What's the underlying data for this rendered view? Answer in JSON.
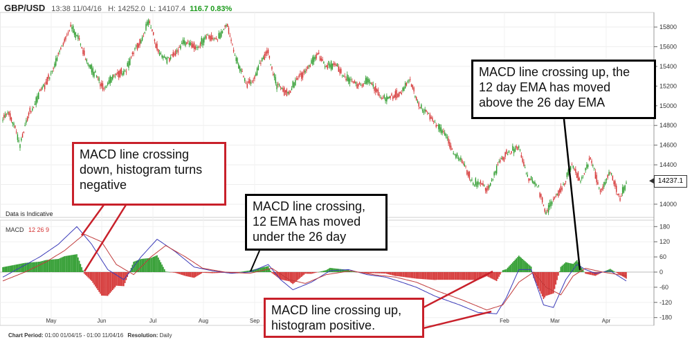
{
  "header": {
    "symbol": "GBP/USD",
    "time": "13:38 11/04/16",
    "high": "H: 14252.0",
    "low": "L: 14107.4",
    "change": "116.7 0.83%"
  },
  "note": "Data is Indicative",
  "indicator": {
    "name": "MACD",
    "params": "12 26 9"
  },
  "footer": {
    "period_label": "Chart Period:",
    "period_value": "01:00 01/04/15 - 01:00 11/04/16",
    "resolution_label": "Resolution:",
    "resolution_value": "Daily"
  },
  "last_price": "14237.1",
  "colors": {
    "up": "#2a9a2a",
    "down": "#d43232",
    "macd": "#3a3ab8",
    "signal": "#c03a3a",
    "callout_red": "#c8202a"
  },
  "callouts": {
    "down_cross": "MACD line crossing\ndown, histogram turns\nnegative",
    "under_cross": "MACD line crossing,\n12 EMA has moved\nunder the 26 day",
    "up_cross_top": "MACD line crossing up, the\n12 day EMA has moved\nabove the 26 day EMA",
    "up_cross_bottom": "MACD line crossing up,\nhistogram positive."
  },
  "chart_data": {
    "type": "candlestick",
    "title": "GBP/USD",
    "x_ticks": [
      "May",
      "Jun",
      "Jul",
      "Aug",
      "Sep",
      "Feb",
      "Mar",
      "Apr"
    ],
    "price_axis": {
      "ticks": [
        14000,
        14200,
        14400,
        14600,
        14800,
        15000,
        15200,
        15400,
        15600,
        15800
      ],
      "ylim": [
        13880,
        15920
      ]
    },
    "macd_axis": {
      "ticks": [
        180,
        120,
        60,
        0,
        -60,
        -120,
        -180
      ],
      "ylim": [
        -200,
        200
      ]
    },
    "price_anchors": [
      [
        0,
        14850
      ],
      [
        5,
        14920
      ],
      [
        10,
        14800
      ],
      [
        14,
        14580
      ],
      [
        22,
        14950
      ],
      [
        35,
        15220
      ],
      [
        45,
        15500
      ],
      [
        55,
        15830
      ],
      [
        62,
        15650
      ],
      [
        70,
        15420
      ],
      [
        80,
        15200
      ],
      [
        90,
        15280
      ],
      [
        100,
        15380
      ],
      [
        110,
        15620
      ],
      [
        118,
        15850
      ],
      [
        126,
        15560
      ],
      [
        135,
        15450
      ],
      [
        145,
        15640
      ],
      [
        155,
        15600
      ],
      [
        165,
        15680
      ],
      [
        175,
        15700
      ],
      [
        182,
        15800
      ],
      [
        190,
        15450
      ],
      [
        197,
        15200
      ],
      [
        205,
        15320
      ],
      [
        215,
        15560
      ],
      [
        222,
        15200
      ],
      [
        230,
        15130
      ],
      [
        240,
        15280
      ],
      [
        248,
        15420
      ],
      [
        256,
        15500
      ],
      [
        262,
        15420
      ],
      [
        270,
        15400
      ],
      [
        278,
        15300
      ],
      [
        286,
        15200
      ],
      [
        295,
        15250
      ],
      [
        303,
        15150
      ],
      [
        312,
        15050
      ],
      [
        322,
        15150
      ],
      [
        330,
        15230
      ],
      [
        340,
        14950
      ],
      [
        350,
        14850
      ],
      [
        360,
        14650
      ],
      [
        370,
        14450
      ],
      [
        380,
        14250
      ],
      [
        392,
        14150
      ],
      [
        402,
        14400
      ],
      [
        410,
        14550
      ],
      [
        418,
        14550
      ],
      [
        426,
        14280
      ],
      [
        434,
        14150
      ],
      [
        440,
        13930
      ],
      [
        446,
        14020
      ],
      [
        452,
        14150
      ],
      [
        460,
        14380
      ],
      [
        468,
        14250
      ],
      [
        476,
        14450
      ],
      [
        484,
        14150
      ],
      [
        492,
        14300
      ],
      [
        500,
        14080
      ],
      [
        505,
        14200
      ]
    ],
    "macd_anchors": [
      [
        0,
        -20
      ],
      [
        15,
        20
      ],
      [
        30,
        60
      ],
      [
        45,
        110
      ],
      [
        60,
        180
      ],
      [
        72,
        110
      ],
      [
        85,
        10
      ],
      [
        98,
        -30
      ],
      [
        112,
        60
      ],
      [
        125,
        130
      ],
      [
        140,
        80
      ],
      [
        155,
        20
      ],
      [
        170,
        5
      ],
      [
        185,
        -5
      ],
      [
        200,
        0
      ],
      [
        215,
        30
      ],
      [
        225,
        -30
      ],
      [
        235,
        -70
      ],
      [
        250,
        -40
      ],
      [
        265,
        5
      ],
      [
        280,
        10
      ],
      [
        295,
        -10
      ],
      [
        310,
        -20
      ],
      [
        320,
        -35
      ],
      [
        335,
        -60
      ],
      [
        350,
        -95
      ],
      [
        370,
        -130
      ],
      [
        385,
        -160
      ],
      [
        400,
        -165
      ],
      [
        408,
        -100
      ],
      [
        418,
        10
      ],
      [
        428,
        10
      ],
      [
        438,
        -130
      ],
      [
        446,
        -140
      ],
      [
        456,
        -30
      ],
      [
        465,
        30
      ],
      [
        472,
        10
      ],
      [
        480,
        -5
      ],
      [
        492,
        5
      ],
      [
        505,
        -35
      ]
    ],
    "signal_anchors": [
      [
        0,
        -35
      ],
      [
        18,
        0
      ],
      [
        35,
        40
      ],
      [
        50,
        85
      ],
      [
        66,
        150
      ],
      [
        80,
        120
      ],
      [
        92,
        30
      ],
      [
        106,
        -10
      ],
      [
        120,
        60
      ],
      [
        132,
        105
      ],
      [
        148,
        60
      ],
      [
        162,
        15
      ],
      [
        180,
        0
      ],
      [
        200,
        -5
      ],
      [
        218,
        15
      ],
      [
        232,
        -30
      ],
      [
        245,
        -45
      ],
      [
        262,
        -10
      ],
      [
        282,
        5
      ],
      [
        300,
        -10
      ],
      [
        318,
        -20
      ],
      [
        335,
        -40
      ],
      [
        352,
        -75
      ],
      [
        372,
        -110
      ],
      [
        392,
        -150
      ],
      [
        405,
        -130
      ],
      [
        418,
        -40
      ],
      [
        430,
        0
      ],
      [
        440,
        -60
      ],
      [
        452,
        -90
      ],
      [
        462,
        -15
      ],
      [
        472,
        15
      ],
      [
        486,
        0
      ],
      [
        505,
        -15
      ]
    ]
  }
}
